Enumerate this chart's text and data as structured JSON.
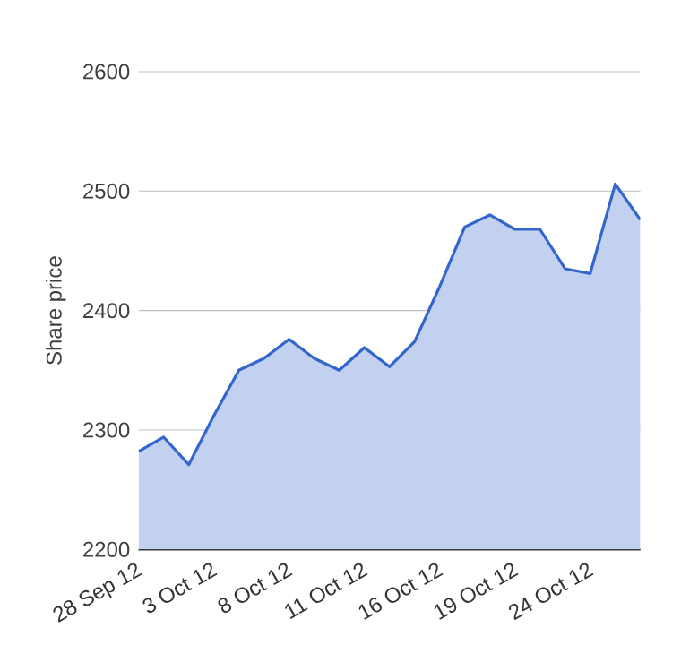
{
  "chart_data": {
    "type": "area",
    "ylabel": "Share price",
    "categories": [
      "28 Sep 12",
      null,
      null,
      "3 Oct 12",
      null,
      null,
      "8 Oct 12",
      null,
      null,
      "11 Oct 12",
      null,
      null,
      "16 Oct 12",
      null,
      null,
      "19 Oct 12",
      null,
      null,
      "24 Oct 12",
      null,
      null
    ],
    "series": [
      {
        "color": "#3366cc",
        "values": [
          2282,
          2294,
          2271,
          2312,
          2350,
          2360,
          2376,
          2360,
          2350,
          2369,
          2353,
          2374,
          2420,
          2470,
          2480,
          2468,
          2468,
          2435,
          2431,
          2506,
          2476
        ]
      }
    ],
    "ylim": [
      2200,
      2600
    ],
    "yticks": [
      2200,
      2300,
      2400,
      2500,
      2600
    ],
    "grid": "y"
  }
}
